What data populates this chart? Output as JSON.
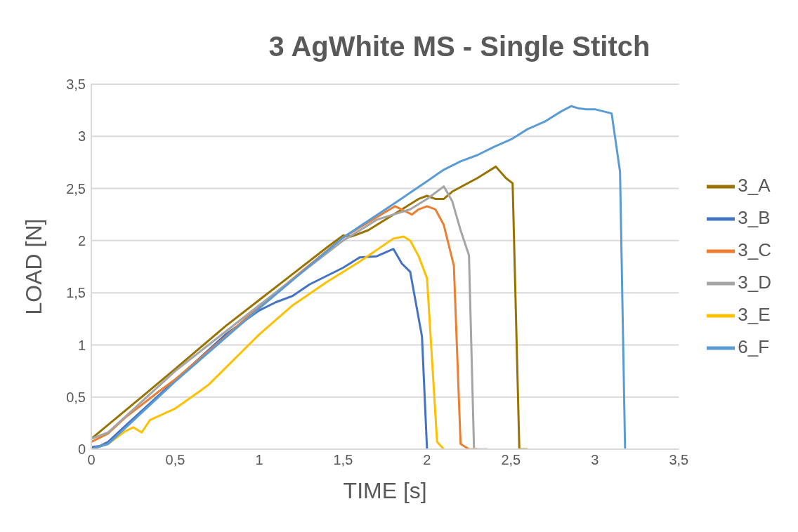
{
  "chart_data": {
    "type": "line",
    "title": "3 AgWhite MS - Single Stitch",
    "xlabel": "TIME [s]",
    "ylabel": "LOAD [N]",
    "xlim": [
      0,
      3.5
    ],
    "ylim": [
      0,
      3.5
    ],
    "xticks": [
      0,
      {
        "value": 0.5,
        "label": "0,5"
      },
      1,
      {
        "value": 1.5,
        "label": "1,5"
      },
      2,
      {
        "value": 2.5,
        "label": "2,5"
      },
      3,
      {
        "value": 3.5,
        "label": "3,5"
      }
    ],
    "yticks": [
      0,
      {
        "value": 0.5,
        "label": "0,5"
      },
      1,
      {
        "value": 1.5,
        "label": "1,5"
      },
      2,
      {
        "value": 2.5,
        "label": "2,5"
      },
      3,
      {
        "value": 3.5,
        "label": "3,5"
      }
    ],
    "grid": "y",
    "legend": "right",
    "marker": "none",
    "line_style": "solid",
    "series": [
      {
        "name": "3_A",
        "color": "#997300",
        "x": [
          0,
          0.15,
          0.3,
          0.5,
          0.8,
          1,
          1.2,
          1.4,
          1.5,
          1.55,
          1.65,
          1.8,
          1.95,
          2.0,
          2.05,
          2.1,
          2.15,
          2.3,
          2.41,
          2.47,
          2.51,
          2.55,
          2.6
        ],
        "values": [
          0.1,
          0.3,
          0.5,
          0.77,
          1.18,
          1.43,
          1.68,
          1.93,
          2.05,
          2.04,
          2.1,
          2.25,
          2.4,
          2.43,
          2.4,
          2.4,
          2.47,
          2.6,
          2.71,
          2.6,
          2.55,
          0,
          0
        ]
      },
      {
        "name": "3_B",
        "color": "#4472c4",
        "x": [
          0,
          0.05,
          0.1,
          0.2,
          0.5,
          0.8,
          1,
          1.1,
          1.2,
          1.3,
          1.5,
          1.6,
          1.7,
          1.8,
          1.85,
          1.9,
          1.97,
          2.0
        ],
        "values": [
          0.02,
          0.03,
          0.07,
          0.22,
          0.66,
          1.1,
          1.33,
          1.41,
          1.47,
          1.58,
          1.74,
          1.84,
          1.85,
          1.92,
          1.78,
          1.7,
          1.08,
          0
        ]
      },
      {
        "name": "3_C",
        "color": "#ed7d31",
        "x": [
          0,
          0.1,
          0.2,
          0.4,
          0.5,
          0.8,
          1,
          1.5,
          1.81,
          1.91,
          1.95,
          2.0,
          2.05,
          2.1,
          2.16,
          2.2,
          2.25,
          2.3
        ],
        "values": [
          0.07,
          0.15,
          0.3,
          0.55,
          0.67,
          1.08,
          1.37,
          2.03,
          2.33,
          2.25,
          2.3,
          2.33,
          2.3,
          2.15,
          1.76,
          0.05,
          0,
          0
        ]
      },
      {
        "name": "3_D",
        "color": "#a5a5a5",
        "x": [
          0,
          0.1,
          0.5,
          1,
          1.5,
          1.7,
          1.9,
          2.0,
          2.1,
          2.15,
          2.2,
          2.25,
          2.28,
          2.36
        ],
        "values": [
          0.1,
          0.16,
          0.75,
          1.38,
          2.0,
          2.2,
          2.3,
          2.4,
          2.52,
          2.38,
          2.1,
          1.86,
          0,
          0
        ]
      },
      {
        "name": "3_E",
        "color": "#ffc000",
        "x": [
          0,
          0.1,
          0.2,
          0.25,
          0.3,
          0.35,
          0.5,
          0.65,
          0.7,
          0.8,
          1,
          1.2,
          1.4,
          1.6,
          1.8,
          1.86,
          1.9,
          1.95,
          2.0,
          2.06,
          2.1
        ],
        "values": [
          0,
          0.05,
          0.17,
          0.21,
          0.16,
          0.28,
          0.39,
          0.56,
          0.62,
          0.78,
          1.1,
          1.38,
          1.6,
          1.8,
          2.02,
          2.04,
          2.0,
          1.85,
          1.64,
          0.07,
          0
        ]
      },
      {
        "name": "6_F",
        "color": "#5b9bd5",
        "x": [
          0,
          0.1,
          0.5,
          1,
          1.5,
          1.8,
          2.0,
          2.1,
          2.2,
          2.3,
          2.4,
          2.5,
          2.6,
          2.7,
          2.8,
          2.86,
          2.9,
          2.95,
          3.0,
          3.05,
          3.1,
          3.15,
          3.18
        ],
        "values": [
          0,
          0.05,
          0.65,
          1.35,
          2.03,
          2.35,
          2.57,
          2.68,
          2.76,
          2.82,
          2.9,
          2.97,
          3.07,
          3.14,
          3.24,
          3.29,
          3.27,
          3.26,
          3.26,
          3.24,
          3.22,
          2.66,
          0
        ]
      }
    ]
  }
}
